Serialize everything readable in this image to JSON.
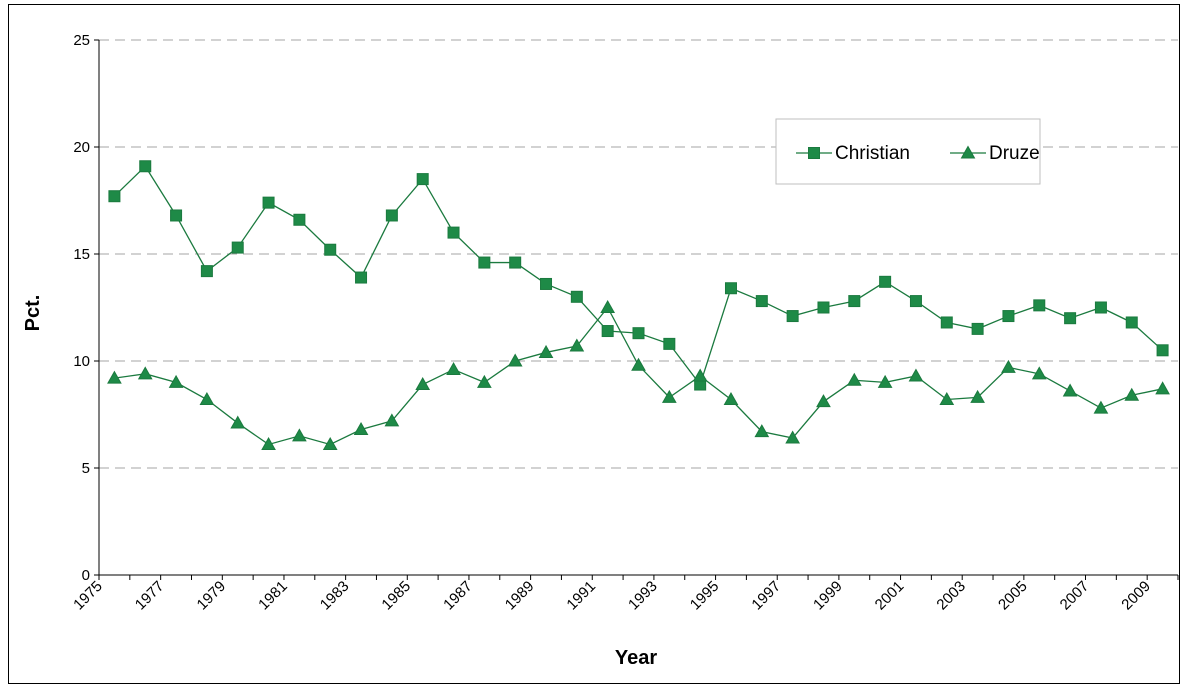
{
  "chart_data": {
    "type": "line",
    "xlabel": "Year",
    "ylabel": "Pct.",
    "ylim": [
      0,
      25
    ],
    "yticks": [
      0,
      5,
      10,
      15,
      20,
      25
    ],
    "xtick_labels": [
      "1975",
      "1977",
      "1979",
      "1981",
      "1983",
      "1985",
      "1987",
      "1989",
      "1991",
      "1993",
      "1995",
      "1997",
      "1999",
      "2001",
      "2003",
      "2005",
      "2007",
      "2009"
    ],
    "x": [
      1975,
      1976,
      1977,
      1978,
      1979,
      1980,
      1981,
      1982,
      1983,
      1984,
      1985,
      1986,
      1987,
      1988,
      1989,
      1990,
      1991,
      1992,
      1993,
      1994,
      1995,
      1996,
      1997,
      1998,
      1999,
      2000,
      2001,
      2002,
      2003,
      2004,
      2005,
      2006,
      2007,
      2008,
      2009
    ],
    "grid": "horizontal-dashed",
    "legend_position": "top-right",
    "colors": {
      "line": "#1b7a3f",
      "marker": "#1e8a47"
    },
    "series": [
      {
        "name": "Christian",
        "marker": "square",
        "values": [
          17.7,
          19.1,
          16.8,
          14.2,
          15.3,
          17.4,
          16.6,
          15.2,
          13.9,
          16.8,
          18.5,
          16.0,
          14.6,
          14.6,
          13.6,
          13.0,
          11.4,
          11.3,
          10.8,
          8.9,
          13.4,
          12.8,
          12.1,
          12.5,
          12.8,
          13.7,
          12.8,
          11.8,
          11.5,
          12.1,
          12.6,
          12.0,
          12.5,
          11.8,
          10.5
        ]
      },
      {
        "name": "Druze",
        "marker": "triangle",
        "values": [
          9.2,
          9.4,
          9.0,
          8.2,
          7.1,
          6.1,
          6.5,
          6.1,
          6.8,
          7.2,
          8.9,
          9.6,
          9.0,
          10.0,
          10.4,
          10.7,
          12.5,
          9.8,
          8.3,
          9.3,
          8.2,
          6.7,
          6.4,
          8.1,
          9.1,
          9.0,
          9.3,
          8.2,
          8.3,
          9.7,
          9.4,
          8.6,
          7.8,
          8.4,
          8.7
        ]
      }
    ]
  }
}
